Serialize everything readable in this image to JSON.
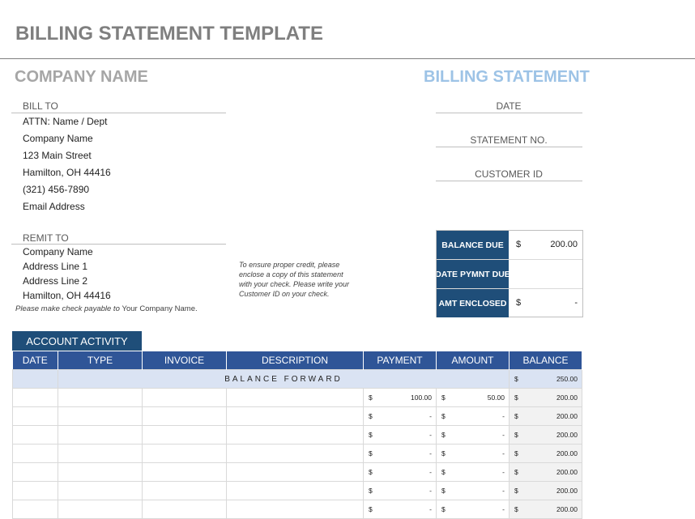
{
  "header": {
    "title": "BILLING STATEMENT TEMPLATE",
    "company_name": "COMPANY NAME",
    "statement_heading": "BILLING STATEMENT"
  },
  "bill_to": {
    "label": "BILL TO",
    "lines": [
      "ATTN: Name / Dept",
      "Company Name",
      "123 Main Street",
      "Hamilton, OH  44416",
      "(321) 456-7890",
      "Email Address"
    ]
  },
  "remit_to": {
    "label": "REMIT TO",
    "lines": [
      "Company Name",
      "Address Line 1",
      "Address Line 2",
      "Hamilton, OH  44416"
    ],
    "payable_prefix": "Please make check payable to",
    "payable_name": "Your Company Name."
  },
  "note": {
    "lines": [
      "To ensure proper credit, please",
      "enclose a copy of this statement",
      "with your check.  Please write your",
      "Customer ID on your check."
    ]
  },
  "right_fields": [
    "DATE",
    "STATEMENT NO.",
    "CUSTOMER ID"
  ],
  "balance_box": {
    "rows": [
      {
        "label": "BALANCE DUE",
        "currency": "$",
        "value": "200.00"
      },
      {
        "label": "DATE PYMNT DUE",
        "currency": "",
        "value": ""
      },
      {
        "label": "AMT ENCLOSED",
        "currency": "$",
        "value": "-"
      }
    ]
  },
  "activity": {
    "tab_label": "ACCOUNT ACTIVITY",
    "columns": [
      "DATE",
      "TYPE",
      "INVOICE",
      "DESCRIPTION",
      "PAYMENT",
      "AMOUNT",
      "BALANCE"
    ],
    "balance_forward": {
      "label": "BALANCE FORWARD",
      "currency": "$",
      "value": "250.00"
    },
    "rows": [
      {
        "payment": "100.00",
        "amount": "50.00",
        "balance": "200.00"
      },
      {
        "payment": "-",
        "amount": "-",
        "balance": "200.00"
      },
      {
        "payment": "-",
        "amount": "-",
        "balance": "200.00"
      },
      {
        "payment": "-",
        "amount": "-",
        "balance": "200.00"
      },
      {
        "payment": "-",
        "amount": "-",
        "balance": "200.00"
      },
      {
        "payment": "-",
        "amount": "-",
        "balance": "200.00"
      },
      {
        "payment": "-",
        "amount": "-",
        "balance": "200.00"
      }
    ],
    "currency": "$"
  },
  "colors": {
    "navy": "#1f4e79",
    "header_blue": "#2f5597",
    "light_blue": "#9dc3e6",
    "forward_bg": "#dae3f3"
  }
}
